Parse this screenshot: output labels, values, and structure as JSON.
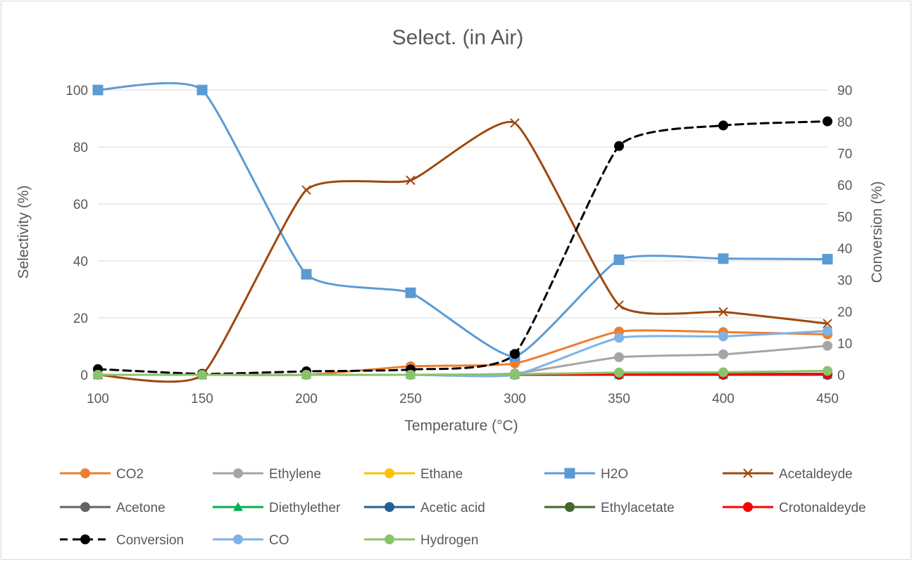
{
  "chart_data": {
    "type": "line",
    "title": "Select. (in Air)",
    "xlabel": "Temperature (°C)",
    "ylabel": "Selectivity (%)",
    "y2label": "Conversion (%)",
    "x": [
      100,
      150,
      200,
      250,
      300,
      350,
      400,
      450
    ],
    "xlim": [
      100,
      450
    ],
    "ylim": [
      0,
      100
    ],
    "y2lim": [
      0,
      90
    ],
    "xticks": [
      "100",
      "150",
      "200",
      "250",
      "300",
      "350",
      "400",
      "450"
    ],
    "yticks": [
      "0",
      "20",
      "40",
      "60",
      "80",
      "100"
    ],
    "y2ticks": [
      "0",
      "10",
      "20",
      "30",
      "40",
      "50",
      "60",
      "70",
      "80",
      "90"
    ],
    "grid": "horizontal",
    "smooth": true,
    "legend_position": "bottom",
    "series": [
      {
        "name": "CO2",
        "axis": "left",
        "color": "#ED7D31",
        "marker": "circle",
        "values": [
          0,
          0,
          0,
          3,
          4,
          15.2,
          15,
          14.2
        ]
      },
      {
        "name": "Ethylene",
        "axis": "left",
        "color": "#A5A5A5",
        "marker": "circle",
        "values": [
          0,
          0,
          0,
          0,
          0.5,
          6.2,
          7.2,
          10.2
        ]
      },
      {
        "name": "Ethane",
        "axis": "left",
        "color": "#FFC000",
        "marker": "circle",
        "values": [
          0,
          0,
          0,
          0,
          0,
          0,
          0,
          0
        ]
      },
      {
        "name": "H2O",
        "axis": "left",
        "color": "#5B9BD5",
        "marker": "square",
        "values": [
          100,
          100,
          35.3,
          28.8,
          6.5,
          40.4,
          40.8,
          40.6
        ]
      },
      {
        "name": "Acetaldeyde",
        "axis": "left",
        "color": "#9E480E",
        "marker": "x",
        "values": [
          0,
          0,
          64.9,
          68.3,
          88.4,
          24.5,
          22.1,
          18
        ]
      },
      {
        "name": "Acetone",
        "axis": "left",
        "color": "#636363",
        "marker": "circle",
        "values": [
          0,
          0,
          0,
          0,
          0,
          0,
          0,
          0
        ]
      },
      {
        "name": "Diethylether",
        "axis": "left",
        "color": "#00B050",
        "marker": "triangle",
        "values": [
          0,
          0,
          0,
          0,
          0,
          0,
          0,
          0
        ]
      },
      {
        "name": "Acetic acid",
        "axis": "left",
        "color": "#255E91",
        "marker": "circle",
        "values": [
          0,
          0,
          0,
          0,
          0,
          0,
          0,
          0
        ]
      },
      {
        "name": "Ethylacetate",
        "axis": "left",
        "color": "#43682B",
        "marker": "circle",
        "values": [
          0,
          0,
          0,
          0,
          0,
          0.3,
          0.3,
          0.4
        ]
      },
      {
        "name": "Crotonaldeyde",
        "axis": "left",
        "color": "#FF0000",
        "marker": "circle",
        "values": [
          0,
          0,
          0,
          0,
          0,
          0.2,
          0.2,
          0.3
        ]
      },
      {
        "name": "Conversion",
        "axis": "right",
        "color": "#000000",
        "marker": "circle",
        "dashed": true,
        "values": [
          1.8,
          0.3,
          1.1,
          1.7,
          6.6,
          72.3,
          78.8,
          80.1
        ]
      },
      {
        "name": "CO",
        "axis": "left",
        "color": "#7FB2E5",
        "marker": "circle",
        "values": [
          0,
          0,
          0,
          0,
          0,
          13,
          13.5,
          15.4
        ]
      },
      {
        "name": "Hydrogen",
        "axis": "left",
        "color": "#8BC36B",
        "marker": "circle",
        "values": [
          0,
          0,
          0,
          0,
          0.2,
          0.8,
          0.9,
          1.4
        ]
      }
    ]
  }
}
